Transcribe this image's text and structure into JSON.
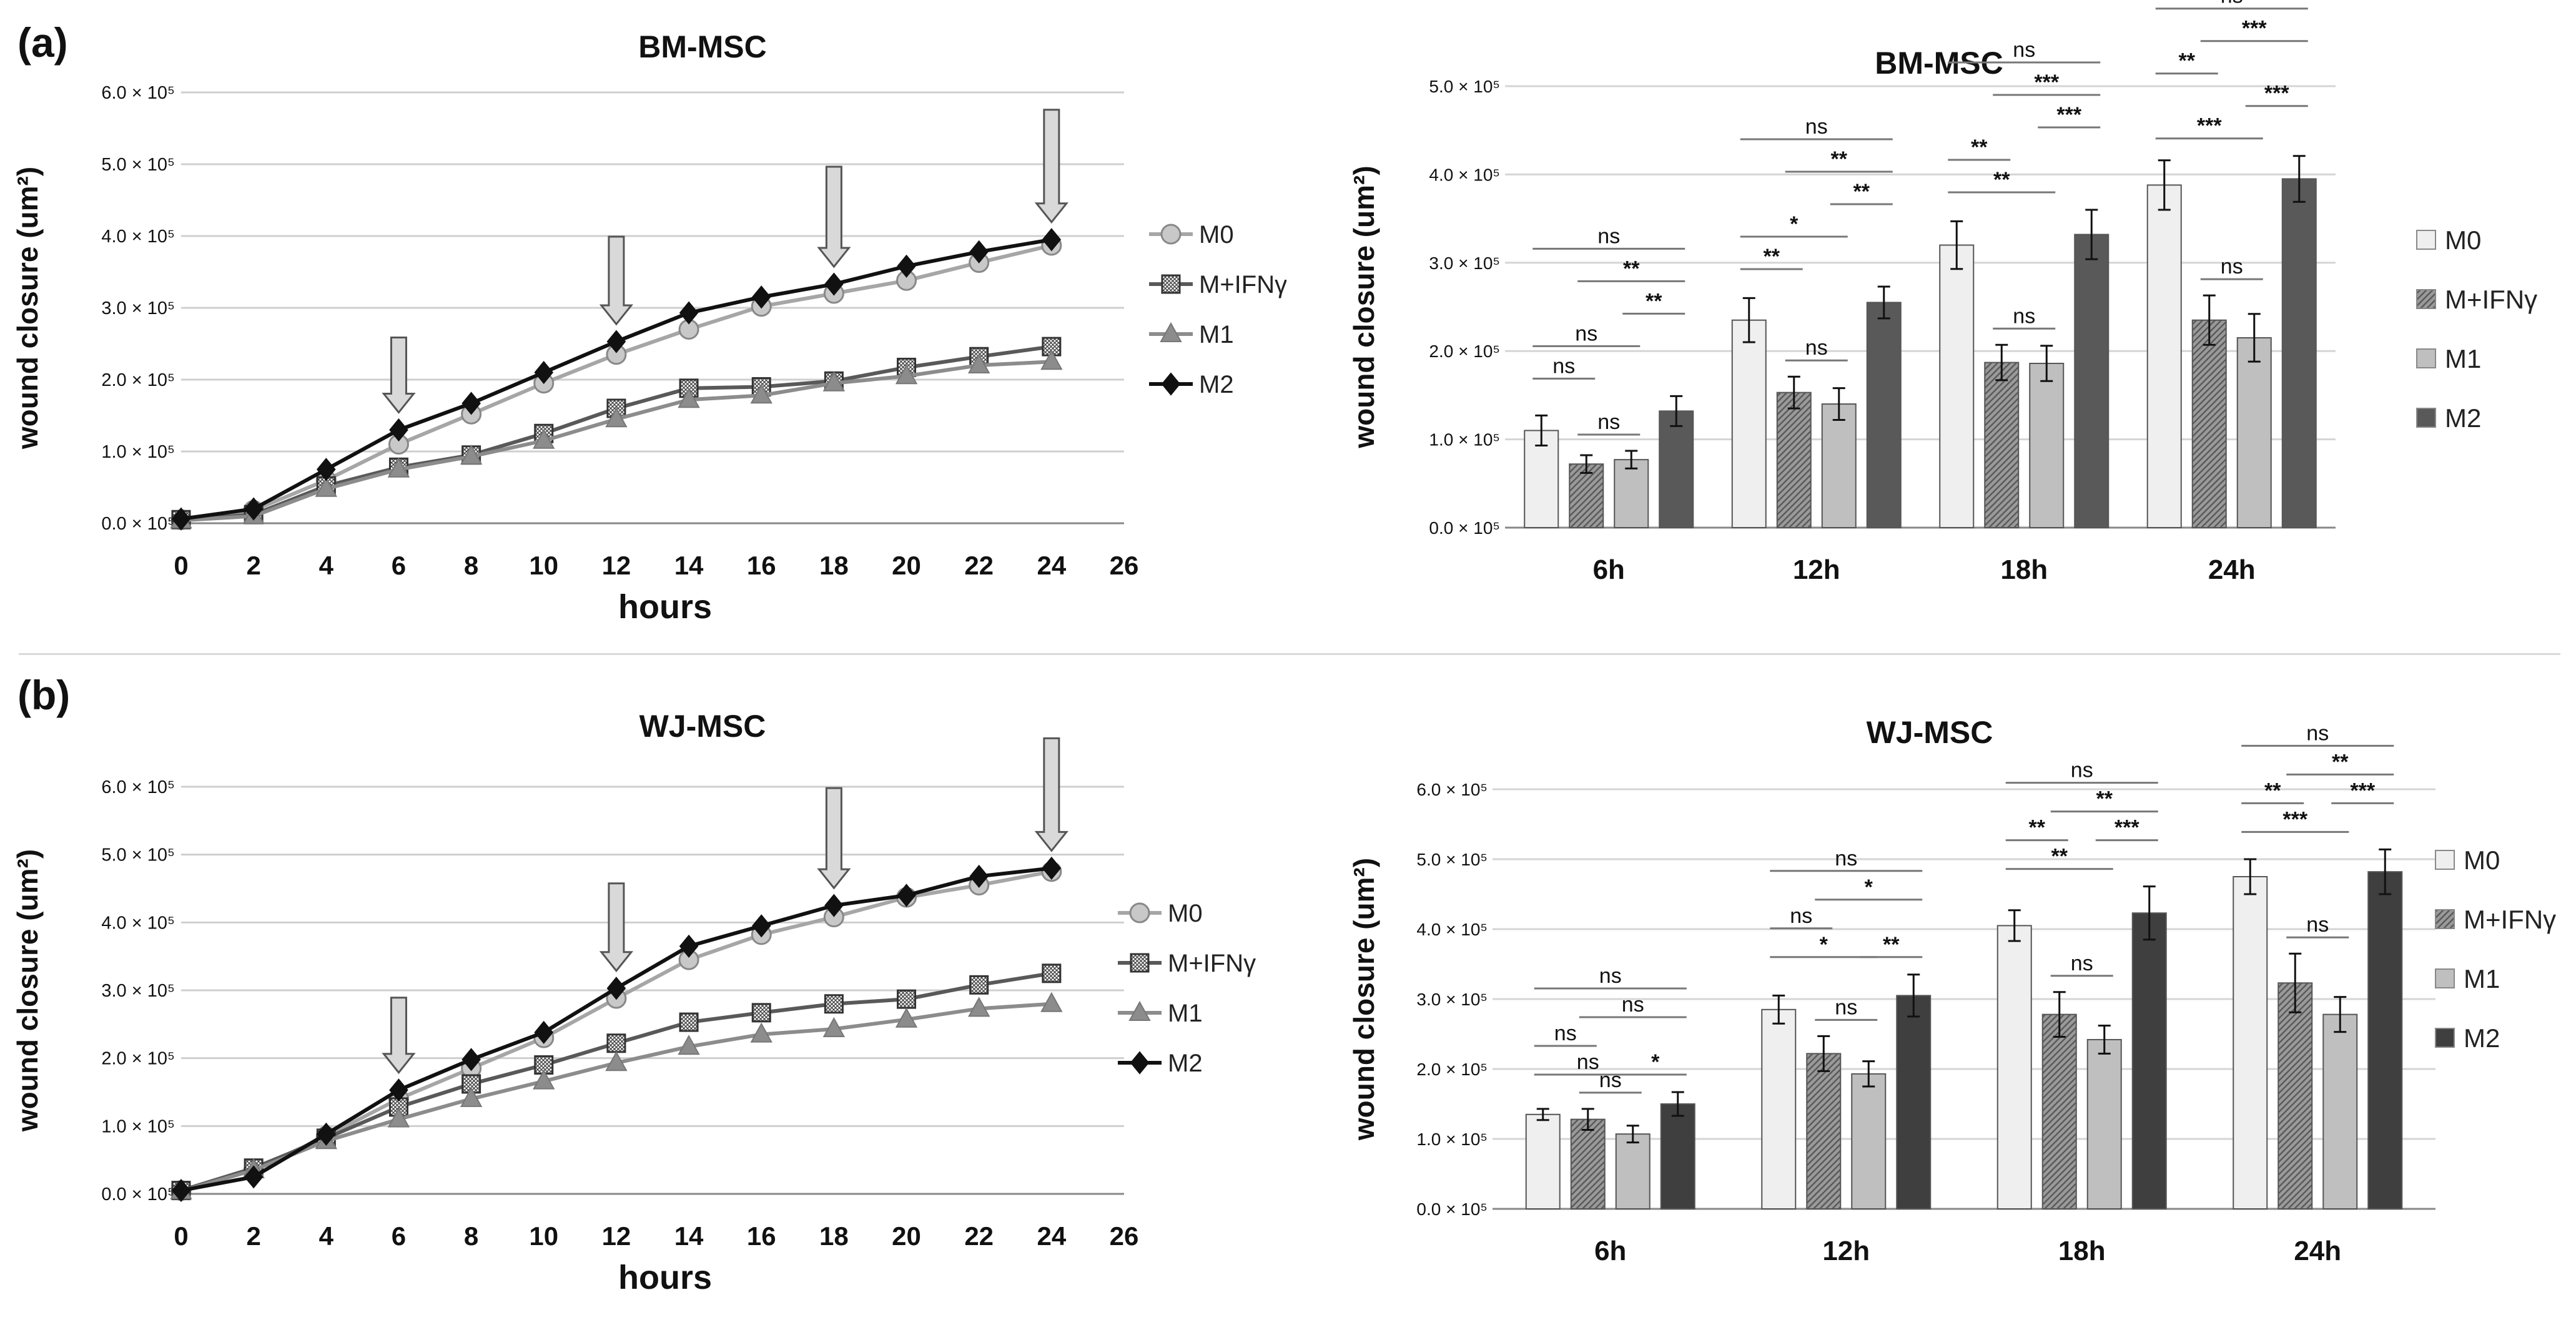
{
  "panel_labels": [
    "(a)",
    "(b)"
  ],
  "chart_data": [
    {
      "type": "line",
      "title": "BM-MSC",
      "xlabel": "hours",
      "ylabel": "wound closure (um²)",
      "x": [
        0,
        2,
        4,
        6,
        8,
        10,
        12,
        14,
        16,
        18,
        20,
        22,
        24
      ],
      "xlim": [
        0,
        26
      ],
      "xticks": [
        "0",
        "2",
        "4",
        "6",
        "8",
        "10",
        "12",
        "14",
        "16",
        "18",
        "20",
        "22",
        "24",
        "26"
      ],
      "ylim": [
        0,
        600000
      ],
      "yticks": [
        "0.0 × 10⁵",
        "1.0 × 10⁵",
        "2.0 × 10⁵",
        "3.0 × 10⁵",
        "4.0 × 10⁵",
        "5.0 × 10⁵",
        "6.0 × 10⁵"
      ],
      "grid": "horizontal",
      "series": [
        {
          "name": "M0",
          "marker": "circle",
          "color": "#a6a6a6",
          "values": [
            5000,
            18000,
            60000,
            110000,
            152000,
            195000,
            235000,
            270000,
            302000,
            320000,
            338000,
            363000,
            387000
          ]
        },
        {
          "name": "M+IFNγ",
          "marker": "hatched-square",
          "color": "#595959",
          "values": [
            5000,
            12000,
            52000,
            78000,
            95000,
            125000,
            160000,
            188000,
            190000,
            198000,
            217000,
            232000,
            246000
          ]
        },
        {
          "name": "M1",
          "marker": "triangle",
          "color": "#8c8c8c",
          "values": [
            4000,
            10000,
            48000,
            75000,
            93000,
            115000,
            145000,
            172000,
            178000,
            195000,
            205000,
            220000,
            225000
          ]
        },
        {
          "name": "M2",
          "marker": "diamond",
          "color": "#111111",
          "values": [
            6000,
            20000,
            75000,
            130000,
            167000,
            210000,
            253000,
            293000,
            315000,
            333000,
            358000,
            378000,
            395000
          ]
        }
      ],
      "arrows_at_hours": [
        6,
        12,
        18,
        24
      ],
      "legend_position": "right"
    },
    {
      "type": "bar",
      "title": "BM-MSC",
      "ylabel": "wound closure (um²)",
      "categories": [
        "6h",
        "12h",
        "18h",
        "24h"
      ],
      "ylim": [
        0,
        500000
      ],
      "yticks": [
        "0.0 × 10⁵",
        "1.0 × 10⁵",
        "2.0 × 10⁵",
        "3.0 × 10⁵",
        "4.0 × 10⁵",
        "5.0 × 10⁵"
      ],
      "grid": "horizontal",
      "series": [
        {
          "name": "M0",
          "color": "#efefef",
          "values": [
            110000,
            235000,
            320000,
            388000
          ],
          "errors": [
            17000,
            25000,
            27000,
            28000
          ]
        },
        {
          "name": "M+IFNγ",
          "color": "#8c8c8c",
          "hatch": true,
          "values": [
            72000,
            153000,
            187000,
            235000
          ],
          "errors": [
            10000,
            18000,
            20000,
            28000
          ]
        },
        {
          "name": "M1",
          "color": "#bfbfbf",
          "values": [
            77000,
            140000,
            186000,
            215000
          ],
          "errors": [
            10000,
            18000,
            20000,
            27000
          ]
        },
        {
          "name": "M2",
          "color": "#595959",
          "values": [
            132000,
            255000,
            332000,
            395000
          ],
          "errors": [
            17000,
            18000,
            28000,
            26000
          ]
        }
      ],
      "significance": [
        {
          "cat": 0,
          "from": 0,
          "to": 1,
          "label": "ns",
          "level": 1
        },
        {
          "cat": 0,
          "from": 1,
          "to": 2,
          "label": "ns",
          "level": 0
        },
        {
          "cat": 0,
          "from": 0,
          "to": 2,
          "label": "ns",
          "level": 2
        },
        {
          "cat": 0,
          "from": 2,
          "to": 3,
          "label": "**",
          "level": 3
        },
        {
          "cat": 0,
          "from": 1,
          "to": 3,
          "label": "**",
          "level": 4
        },
        {
          "cat": 0,
          "from": 0,
          "to": 3,
          "label": "ns",
          "level": 5
        },
        {
          "cat": 1,
          "from": 1,
          "to": 2,
          "label": "ns",
          "level": 0
        },
        {
          "cat": 1,
          "from": 0,
          "to": 1,
          "label": "**",
          "level": 1
        },
        {
          "cat": 1,
          "from": 0,
          "to": 2,
          "label": "*",
          "level": 2
        },
        {
          "cat": 1,
          "from": 2,
          "to": 3,
          "label": "**",
          "level": 3
        },
        {
          "cat": 1,
          "from": 1,
          "to": 3,
          "label": "**",
          "level": 4
        },
        {
          "cat": 1,
          "from": 0,
          "to": 3,
          "label": "ns",
          "level": 5
        },
        {
          "cat": 2,
          "from": 1,
          "to": 2,
          "label": "ns",
          "level": 0
        },
        {
          "cat": 2,
          "from": 0,
          "to": 2,
          "label": "**",
          "level": 1
        },
        {
          "cat": 2,
          "from": 0,
          "to": 1,
          "label": "**",
          "level": 2
        },
        {
          "cat": 2,
          "from": 2,
          "to": 3,
          "label": "***",
          "level": 3
        },
        {
          "cat": 2,
          "from": 1,
          "to": 3,
          "label": "***",
          "level": 4
        },
        {
          "cat": 2,
          "from": 0,
          "to": 3,
          "label": "ns",
          "level": 5
        },
        {
          "cat": 3,
          "from": 1,
          "to": 2,
          "label": "ns",
          "level": 0
        },
        {
          "cat": 3,
          "from": 0,
          "to": 2,
          "label": "***",
          "level": 1
        },
        {
          "cat": 3,
          "from": 2,
          "to": 3,
          "label": "***",
          "level": 2
        },
        {
          "cat": 3,
          "from": 0,
          "to": 1,
          "label": "**",
          "level": 3
        },
        {
          "cat": 3,
          "from": 1,
          "to": 3,
          "label": "***",
          "level": 4
        },
        {
          "cat": 3,
          "from": 0,
          "to": 3,
          "label": "ns",
          "level": 5
        }
      ],
      "legend_position": "right"
    },
    {
      "type": "line",
      "title": "WJ-MSC",
      "xlabel": "hours",
      "ylabel": "wound closure (um²)",
      "x": [
        0,
        2,
        4,
        6,
        8,
        10,
        12,
        14,
        16,
        18,
        20,
        22,
        24
      ],
      "xlim": [
        0,
        26
      ],
      "xticks": [
        "0",
        "2",
        "4",
        "6",
        "8",
        "10",
        "12",
        "14",
        "16",
        "18",
        "20",
        "22",
        "24",
        "26"
      ],
      "ylim": [
        0,
        600000
      ],
      "yticks": [
        "0.0 × 10⁵",
        "1.0 × 10⁵",
        "2.0 × 10⁵",
        "3.0 × 10⁵",
        "4.0 × 10⁵",
        "5.0 × 10⁵",
        "6.0 × 10⁵"
      ],
      "grid": "horizontal",
      "series": [
        {
          "name": "M0",
          "marker": "circle",
          "color": "#a6a6a6",
          "values": [
            5000,
            35000,
            85000,
            140000,
            185000,
            230000,
            288000,
            345000,
            382000,
            408000,
            437000,
            455000,
            475000
          ]
        },
        {
          "name": "M+IFNγ",
          "marker": "hatched-square",
          "color": "#595959",
          "values": [
            5000,
            38000,
            82000,
            128000,
            162000,
            190000,
            222000,
            253000,
            267000,
            280000,
            287000,
            308000,
            325000
          ]
        },
        {
          "name": "M1",
          "marker": "triangle",
          "color": "#8c8c8c",
          "values": [
            4000,
            35000,
            78000,
            110000,
            140000,
            166000,
            193000,
            217000,
            235000,
            243000,
            257000,
            273000,
            280000
          ]
        },
        {
          "name": "M2",
          "marker": "diamond",
          "color": "#111111",
          "values": [
            5000,
            25000,
            88000,
            153000,
            198000,
            238000,
            303000,
            365000,
            395000,
            425000,
            440000,
            468000,
            480000
          ]
        }
      ],
      "arrows_at_hours": [
        6,
        12,
        18,
        24
      ],
      "legend_position": "right"
    },
    {
      "type": "bar",
      "title": "WJ-MSC",
      "ylabel": "wound closure (um²)",
      "categories": [
        "6h",
        "12h",
        "18h",
        "24h"
      ],
      "ylim": [
        0,
        600000
      ],
      "yticks": [
        "0.0 × 10⁵",
        "1.0 × 10⁵",
        "2.0 × 10⁵",
        "3.0 × 10⁵",
        "4.0 × 10⁵",
        "5.0 × 10⁵",
        "6.0 × 10⁵"
      ],
      "grid": "horizontal",
      "series": [
        {
          "name": "M0",
          "color": "#efefef",
          "values": [
            135000,
            285000,
            405000,
            475000
          ],
          "errors": [
            8000,
            20000,
            22000,
            25000
          ]
        },
        {
          "name": "M+IFNγ",
          "color": "#8c8c8c",
          "hatch": true,
          "values": [
            128000,
            222000,
            278000,
            323000
          ],
          "errors": [
            15000,
            25000,
            32000,
            42000
          ]
        },
        {
          "name": "M1",
          "color": "#bfbfbf",
          "values": [
            107000,
            193000,
            242000,
            278000
          ],
          "errors": [
            12000,
            18000,
            20000,
            25000
          ]
        },
        {
          "name": "M2",
          "color": "#3f3f3f",
          "values": [
            150000,
            305000,
            423000,
            482000
          ],
          "errors": [
            17000,
            30000,
            38000,
            32000
          ]
        }
      ],
      "significance": [
        {
          "cat": 0,
          "from": 1,
          "to": 2,
          "label": "ns",
          "level": 0
        },
        {
          "cat": 0,
          "from": 0,
          "to": 2,
          "label": "ns",
          "level": 1
        },
        {
          "cat": 0,
          "from": 2,
          "to": 3,
          "label": "*",
          "level": 1
        },
        {
          "cat": 0,
          "from": 0,
          "to": 1,
          "label": "ns",
          "level": 2
        },
        {
          "cat": 0,
          "from": 1,
          "to": 3,
          "label": "ns",
          "level": 3
        },
        {
          "cat": 0,
          "from": 0,
          "to": 3,
          "label": "ns",
          "level": 4
        },
        {
          "cat": 1,
          "from": 1,
          "to": 2,
          "label": "ns",
          "level": 0
        },
        {
          "cat": 1,
          "from": 2,
          "to": 3,
          "label": "**",
          "level": 1
        },
        {
          "cat": 1,
          "from": 0,
          "to": 2,
          "label": "*",
          "level": 1
        },
        {
          "cat": 1,
          "from": 0,
          "to": 1,
          "label": "ns",
          "level": 2
        },
        {
          "cat": 1,
          "from": 1,
          "to": 3,
          "label": "*",
          "level": 3
        },
        {
          "cat": 1,
          "from": 0,
          "to": 3,
          "label": "ns",
          "level": 4
        },
        {
          "cat": 2,
          "from": 1,
          "to": 2,
          "label": "ns",
          "level": 0
        },
        {
          "cat": 2,
          "from": 0,
          "to": 2,
          "label": "**",
          "level": 1
        },
        {
          "cat": 2,
          "from": 0,
          "to": 1,
          "label": "**",
          "level": 2
        },
        {
          "cat": 2,
          "from": 2,
          "to": 3,
          "label": "***",
          "level": 2
        },
        {
          "cat": 2,
          "from": 1,
          "to": 3,
          "label": "**",
          "level": 3
        },
        {
          "cat": 2,
          "from": 0,
          "to": 3,
          "label": "ns",
          "level": 4
        },
        {
          "cat": 3,
          "from": 1,
          "to": 2,
          "label": "ns",
          "level": 0
        },
        {
          "cat": 3,
          "from": 0,
          "to": 2,
          "label": "***",
          "level": 1
        },
        {
          "cat": 3,
          "from": 0,
          "to": 1,
          "label": "**",
          "level": 2
        },
        {
          "cat": 3,
          "from": 2,
          "to": 3,
          "label": "***",
          "level": 2
        },
        {
          "cat": 3,
          "from": 1,
          "to": 3,
          "label": "**",
          "level": 3
        },
        {
          "cat": 3,
          "from": 0,
          "to": 3,
          "label": "ns",
          "level": 4
        }
      ],
      "legend_position": "right"
    }
  ]
}
